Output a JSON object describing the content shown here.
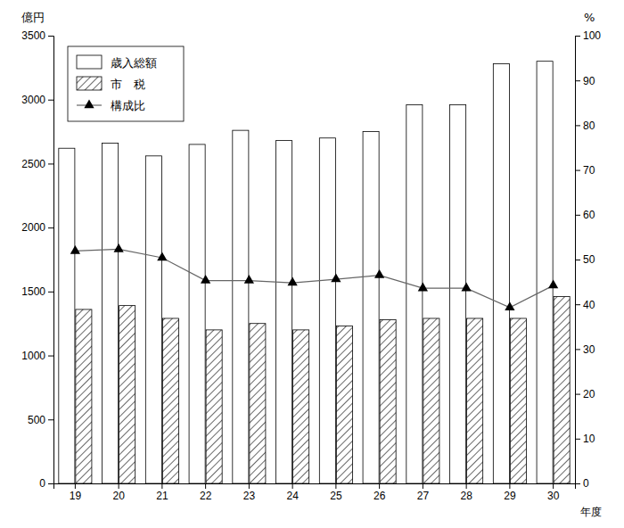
{
  "chart_data": {
    "type": "bar",
    "categories": [
      "19",
      "20",
      "21",
      "22",
      "23",
      "24",
      "25",
      "26",
      "27",
      "28",
      "29",
      "30"
    ],
    "xlabel": "年度",
    "ylabel": "億円",
    "y2label": "%",
    "ylim": [
      0,
      3500
    ],
    "yticks": [
      0,
      500,
      1000,
      1500,
      2000,
      2500,
      3000,
      3500
    ],
    "y2lim": [
      0,
      100
    ],
    "y2ticks": [
      0,
      10,
      20,
      30,
      40,
      50,
      60,
      70,
      80,
      90,
      100
    ],
    "grid": false,
    "legend": "upper left",
    "series": [
      {
        "name": "歳入総額",
        "type": "bar",
        "color": "#ffffff",
        "values": [
          2620,
          2660,
          2560,
          2650,
          2760,
          2680,
          2700,
          2750,
          2960,
          2960,
          3280,
          3300
        ]
      },
      {
        "name": "市　税",
        "type": "bar",
        "color": "#ffffff",
        "values": [
          1360,
          1390,
          1290,
          1200,
          1250,
          1200,
          1230,
          1280,
          1290,
          1290,
          1290,
          1460
        ]
      },
      {
        "name": "構成比",
        "type": "line",
        "axis": "y2",
        "color": "#666666",
        "marker": "triangle",
        "values": [
          51.9,
          52.3,
          50.4,
          45.3,
          45.3,
          44.8,
          45.6,
          46.5,
          43.6,
          43.6,
          39.3,
          44.2
        ]
      }
    ]
  }
}
